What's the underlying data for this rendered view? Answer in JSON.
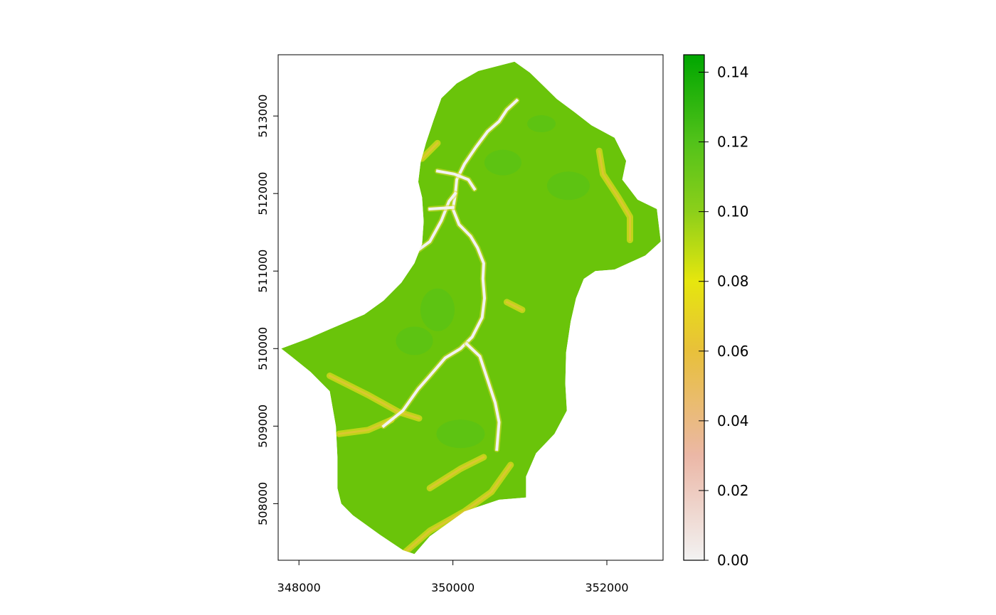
{
  "chart_data": {
    "type": "heatmap",
    "title": "",
    "xlabel": "",
    "ylabel": "",
    "x_ticks": [
      348000,
      350000,
      352000
    ],
    "y_ticks": [
      508000,
      509000,
      510000,
      511000,
      512000,
      513000
    ],
    "x_tick_labels": [
      "348000",
      "350000",
      "352000"
    ],
    "y_tick_labels": [
      "508000",
      "509000",
      "510000",
      "511000",
      "512000",
      "513000"
    ],
    "xlim": [
      347730,
      352730
    ],
    "ylim": [
      507270,
      513790
    ],
    "legend": {
      "position": "right",
      "range": [
        0.0,
        0.145
      ],
      "ticks": [
        0.0,
        0.02,
        0.04,
        0.06,
        0.08,
        0.1,
        0.12,
        0.14
      ],
      "tick_labels": [
        "0.00",
        "0.02",
        "0.04",
        "0.06",
        "0.08",
        "0.10",
        "0.12",
        "0.14"
      ],
      "colors": [
        {
          "value": 0.0,
          "color": "#f2f2f2"
        },
        {
          "value": 0.03,
          "color": "#ebb7a6"
        },
        {
          "value": 0.06,
          "color": "#e8c03a"
        },
        {
          "value": 0.08,
          "color": "#e6e60e"
        },
        {
          "value": 0.1,
          "color": "#8ccf1a"
        },
        {
          "value": 0.12,
          "color": "#52c21a"
        },
        {
          "value": 0.145,
          "color": "#00a600"
        }
      ]
    },
    "grid": false,
    "map_fill": "#6ac40a",
    "channel_color": "#f2f2f2",
    "catchment_outline": [
      [
        347770,
        510000
      ],
      [
        348120,
        510130
      ],
      [
        348400,
        510250
      ],
      [
        348850,
        510440
      ],
      [
        349100,
        510620
      ],
      [
        349330,
        510850
      ],
      [
        349500,
        511100
      ],
      [
        349600,
        511350
      ],
      [
        349620,
        511640
      ],
      [
        349600,
        511950
      ],
      [
        349550,
        512150
      ],
      [
        349580,
        512400
      ],
      [
        349650,
        512650
      ],
      [
        349750,
        512950
      ],
      [
        349850,
        513230
      ],
      [
        350050,
        513420
      ],
      [
        350330,
        513580
      ],
      [
        350800,
        513700
      ],
      [
        351000,
        513560
      ],
      [
        351350,
        513220
      ],
      [
        351580,
        513050
      ],
      [
        351800,
        512880
      ],
      [
        352100,
        512720
      ],
      [
        352250,
        512420
      ],
      [
        352200,
        512180
      ],
      [
        352400,
        511920
      ],
      [
        352650,
        511800
      ],
      [
        352700,
        511380
      ],
      [
        352500,
        511200
      ],
      [
        352100,
        511020
      ],
      [
        351850,
        511000
      ],
      [
        351700,
        510900
      ],
      [
        351600,
        510650
      ],
      [
        351530,
        510350
      ],
      [
        351470,
        509950
      ],
      [
        351460,
        509550
      ],
      [
        351480,
        509200
      ],
      [
        351320,
        508900
      ],
      [
        351080,
        508650
      ],
      [
        350950,
        508350
      ],
      [
        350950,
        508080
      ],
      [
        350600,
        508050
      ],
      [
        350150,
        507900
      ],
      [
        349700,
        507580
      ],
      [
        349500,
        507350
      ],
      [
        349350,
        507400
      ],
      [
        349050,
        507600
      ],
      [
        348700,
        507850
      ],
      [
        348550,
        508000
      ],
      [
        348500,
        508200
      ],
      [
        348500,
        508600
      ],
      [
        348480,
        509000
      ],
      [
        348400,
        509450
      ],
      [
        348150,
        509700
      ],
      [
        347900,
        509900
      ]
    ],
    "streams": [
      [
        [
          350830,
          513200
        ],
        [
          350700,
          513080
        ],
        [
          350600,
          512930
        ],
        [
          350450,
          512800
        ],
        [
          350300,
          512600
        ],
        [
          350150,
          512380
        ],
        [
          350050,
          512180
        ],
        [
          350030,
          511980
        ],
        [
          350000,
          511800
        ],
        [
          350080,
          511600
        ],
        [
          350230,
          511450
        ],
        [
          350320,
          511300
        ],
        [
          350400,
          511100
        ],
        [
          350390,
          510900
        ],
        [
          350410,
          510650
        ],
        [
          350380,
          510400
        ],
        [
          350250,
          510150
        ],
        [
          350100,
          510000
        ],
        [
          349900,
          509880
        ],
        [
          349700,
          509650
        ],
        [
          349550,
          509480
        ],
        [
          349350,
          509200
        ],
        [
          349100,
          509000
        ]
      ],
      [
        [
          349800,
          512290
        ],
        [
          350020,
          512250
        ],
        [
          350200,
          512180
        ],
        [
          350280,
          512060
        ]
      ],
      [
        [
          350030,
          512000
        ],
        [
          349950,
          511900
        ],
        [
          349850,
          511650
        ],
        [
          349700,
          511380
        ],
        [
          349520,
          511250
        ],
        [
          349400,
          511080
        ]
      ],
      [
        [
          350000,
          511820
        ],
        [
          349700,
          511800
        ]
      ],
      [
        [
          350180,
          510060
        ],
        [
          350350,
          509900
        ],
        [
          350450,
          509600
        ],
        [
          350550,
          509300
        ],
        [
          350600,
          509050
        ],
        [
          350570,
          508700
        ]
      ]
    ],
    "valleys": [
      [
        [
          348400,
          509650
        ],
        [
          348900,
          509400
        ],
        [
          349300,
          509180
        ],
        [
          349560,
          509100
        ]
      ],
      [
        [
          348520,
          508900
        ],
        [
          348900,
          508950
        ],
        [
          349200,
          509080
        ]
      ],
      [
        [
          349350,
          507350
        ],
        [
          349700,
          507650
        ],
        [
          350150,
          507900
        ],
        [
          350500,
          508150
        ],
        [
          350750,
          508500
        ]
      ],
      [
        [
          351900,
          512550
        ],
        [
          351950,
          512250
        ],
        [
          352150,
          511950
        ],
        [
          352300,
          511700
        ],
        [
          352300,
          511400
        ]
      ],
      [
        [
          349800,
          512650
        ],
        [
          349600,
          512450
        ]
      ],
      [
        [
          350700,
          510600
        ],
        [
          350900,
          510500
        ]
      ],
      [
        [
          349700,
          508200
        ],
        [
          350100,
          508450
        ],
        [
          350400,
          508600
        ]
      ]
    ]
  }
}
